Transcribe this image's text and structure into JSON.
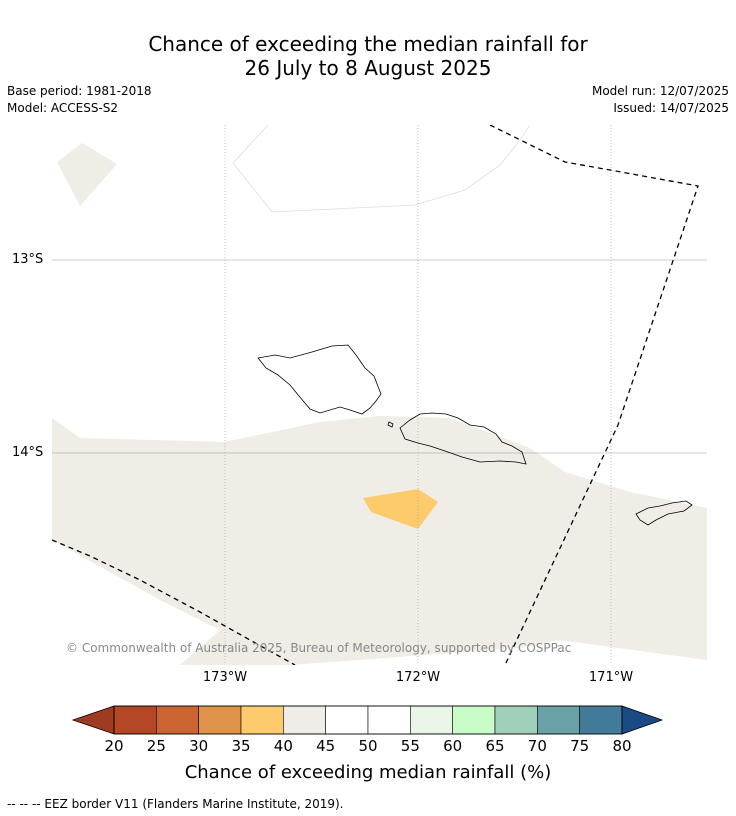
{
  "title": {
    "line1": "Chance of exceeding the median rainfall for",
    "line2": "26 July to 8 August 2025"
  },
  "meta": {
    "base_period": "Base period: 1981-2018",
    "model": "Model: ACCESS-S2",
    "model_run": "Model run: 12/07/2025",
    "issued": "Issued: 14/07/2025"
  },
  "map": {
    "lat_labels": [
      "13°S",
      "14°S"
    ],
    "lon_labels": [
      "173°W",
      "172°W",
      "171°W"
    ],
    "copyright": "© Commonwealth of Australia 2025, Bureau of Meteorology, supported by COSPPac",
    "colors": {
      "category_40_45": "#f0ece6",
      "category_35_40": "#fdcb6b",
      "eez_border": "#000000",
      "grid": "#999999"
    }
  },
  "colorbar": {
    "title": "Chance of exceeding median rainfall (%)",
    "ticks": [
      "20",
      "25",
      "30",
      "35",
      "40",
      "45",
      "50",
      "55",
      "60",
      "65",
      "70",
      "75",
      "80"
    ],
    "colors": [
      "#b34726",
      "#cd6532",
      "#e0944a",
      "#fdcb6b",
      "#f0ece6",
      "#ffffff",
      "#ffffff",
      "#e9f6e7",
      "#c9fbc9",
      "#9dcfb9",
      "#6aa3a7",
      "#427a99"
    ],
    "under_color": "#9e3b21",
    "over_color": "#1a4b84"
  },
  "footer": {
    "eez_note": "--  --  -- EEZ border V11 (Flanders Marine Institute, 2019)."
  }
}
